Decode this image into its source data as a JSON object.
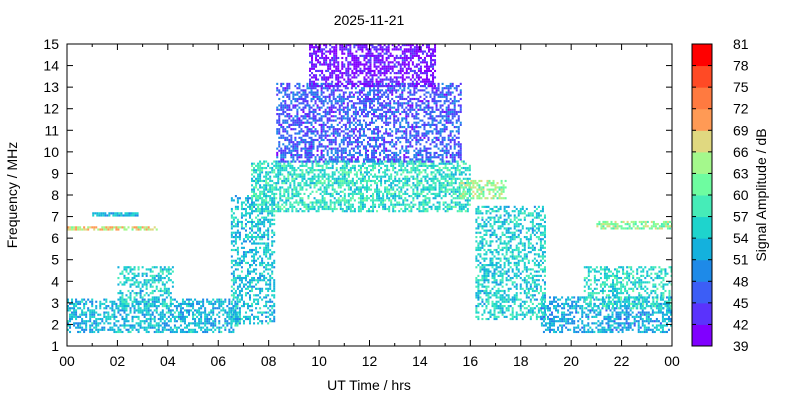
{
  "chart_data": {
    "type": "heatmap",
    "title": "2025-11-21",
    "xlabel": "UT Time / hrs",
    "ylabel": "Frequency / MHz",
    "xlim": [
      0,
      24
    ],
    "ylim": [
      1,
      15
    ],
    "x_ticks": [
      "00",
      "02",
      "04",
      "06",
      "08",
      "10",
      "12",
      "14",
      "16",
      "18",
      "20",
      "22",
      "00"
    ],
    "y_ticks": [
      "1",
      "2",
      "3",
      "4",
      "5",
      "6",
      "7",
      "8",
      "9",
      "10",
      "11",
      "12",
      "13",
      "14",
      "15"
    ],
    "grid": false,
    "colorbar": {
      "label": "Signal Amplitude / dB",
      "range": [
        39,
        81
      ],
      "ticks": [
        "39",
        "42",
        "45",
        "48",
        "51",
        "54",
        "57",
        "60",
        "63",
        "66",
        "69",
        "72",
        "75",
        "78",
        "81"
      ],
      "colors": [
        "#8000ff",
        "#5a33fc",
        "#3c5ef6",
        "#1e8ae8",
        "#14b1dd",
        "#1ed4cd",
        "#46ecb8",
        "#6efca0",
        "#a4f88c",
        "#e0d880",
        "#ff9a55",
        "#ff7a40",
        "#ff4a25",
        "#ff0000"
      ]
    },
    "features": [
      {
        "x": [
          0.0,
          6.8
        ],
        "y": [
          1.6,
          3.2
        ],
        "level": 53,
        "density": 0.55
      },
      {
        "x": [
          2.0,
          4.2
        ],
        "y": [
          2.8,
          4.7
        ],
        "level": 55,
        "density": 0.5
      },
      {
        "x": [
          0.0,
          3.6
        ],
        "y": [
          6.35,
          6.55
        ],
        "level": 67,
        "density": 0.75
      },
      {
        "x": [
          1.0,
          2.8
        ],
        "y": [
          7.0,
          7.2
        ],
        "level": 53,
        "density": 0.8
      },
      {
        "x": [
          6.5,
          8.2
        ],
        "y": [
          2.0,
          8.0
        ],
        "level": 54,
        "density": 0.45
      },
      {
        "x": [
          7.3,
          16.0
        ],
        "y": [
          7.2,
          9.6
        ],
        "level": 57,
        "density": 0.6
      },
      {
        "x": [
          8.3,
          15.6
        ],
        "y": [
          9.5,
          13.2
        ],
        "level": 46,
        "density": 0.55
      },
      {
        "x": [
          9.6,
          14.6
        ],
        "y": [
          13.0,
          15.0
        ],
        "level": 41,
        "density": 0.6
      },
      {
        "x": [
          15.6,
          17.4
        ],
        "y": [
          7.8,
          8.7
        ],
        "level": 64,
        "density": 0.6
      },
      {
        "x": [
          16.2,
          19.0
        ],
        "y": [
          2.2,
          7.5
        ],
        "level": 55,
        "density": 0.5
      },
      {
        "x": [
          18.8,
          24.0
        ],
        "y": [
          1.6,
          3.3
        ],
        "level": 52,
        "density": 0.55
      },
      {
        "x": [
          20.5,
          24.0
        ],
        "y": [
          2.7,
          4.7
        ],
        "level": 56,
        "density": 0.5
      },
      {
        "x": [
          21.0,
          24.0
        ],
        "y": [
          6.4,
          6.75
        ],
        "level": 63,
        "density": 0.6
      }
    ]
  }
}
